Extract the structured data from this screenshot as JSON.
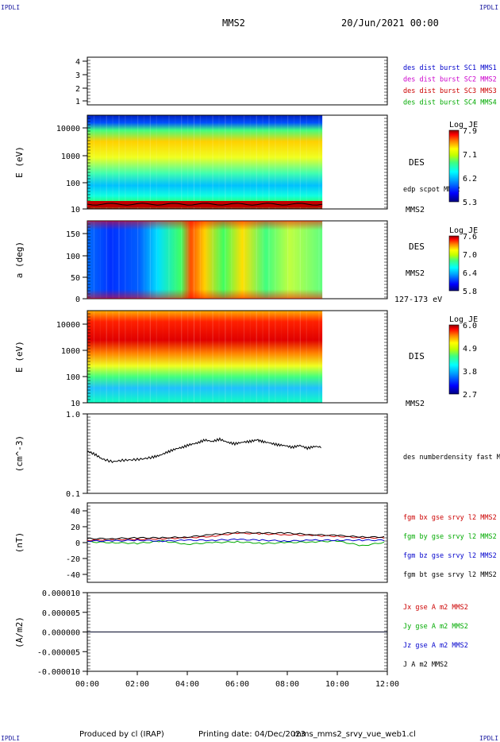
{
  "corners": {
    "top_left": "IPDLI",
    "top_right": "IPDLI",
    "bottom_left": "IPDLI",
    "bottom_right": "IPDLI"
  },
  "header": {
    "spacecraft": "MMS2",
    "date": "20/Jun/2021 00:00"
  },
  "footer": {
    "produced_by": "Produced by cl (IRAP)",
    "printing_date": "Printing date: 04/Dec/2023",
    "filename": "mms_mms2_srvy_vue_web1.cl"
  },
  "colors": {
    "spectrogram_scale": [
      "#00007f",
      "#0000ff",
      "#00a0ff",
      "#00ffff",
      "#40ff80",
      "#c0ff00",
      "#ffff00",
      "#ff8000",
      "#ff0000",
      "#8b0000"
    ],
    "bx": "#cc0000",
    "by": "#00aa00",
    "bz": "#0000cc",
    "bt": "#000000"
  },
  "chart_data": [
    {
      "type": "scatter",
      "title": "",
      "ylim": [
        0.5,
        4.5
      ],
      "yticks": [
        "4",
        "3",
        "2",
        "1"
      ],
      "legend_position": "right",
      "series": [
        {
          "name": "des dist burst SC1 MMS1",
          "color": "#0000cc",
          "values": []
        },
        {
          "name": "des dist burst SC2 MMS2",
          "color": "#cc00cc",
          "values": []
        },
        {
          "name": "des dist burst SC3 MMS3",
          "color": "#cc0000",
          "values": []
        },
        {
          "name": "des dist burst SC4 MMS4",
          "color": "#00aa00",
          "values": []
        }
      ]
    },
    {
      "type": "heatmap",
      "ylabel": "E (eV)",
      "yscale": "log",
      "yticks": [
        "10000",
        "1000",
        "100",
        "10"
      ],
      "instrument": "DES",
      "overlay_label": "edp scpot MMS2",
      "spacecraft": "MMS2",
      "colorbar": {
        "title": "Log JE",
        "ticks": [
          "7.9",
          "7.1",
          "6.2",
          "5.3"
        ],
        "range": [
          5.3,
          7.9
        ]
      },
      "data_end_hour": 9.4
    },
    {
      "type": "heatmap",
      "ylabel": "a (deg)",
      "yticks": [
        "150",
        "100",
        "50",
        "0"
      ],
      "ylim": [
        0,
        180
      ],
      "instrument": "DES",
      "spacecraft": "MMS2",
      "energy_range": "127-173 eV",
      "colorbar": {
        "title": "Log JE",
        "ticks": [
          "7.6",
          "7.0",
          "6.4",
          "5.8"
        ],
        "range": [
          5.8,
          7.6
        ]
      },
      "data_end_hour": 9.4
    },
    {
      "type": "heatmap",
      "ylabel": "E (eV)",
      "yscale": "log",
      "yticks": [
        "10000",
        "1000",
        "100",
        "10"
      ],
      "instrument": "DIS",
      "spacecraft": "MMS2",
      "colorbar": {
        "title": "Log JE",
        "ticks": [
          "6.0",
          "4.9",
          "3.8",
          "2.7"
        ],
        "range": [
          2.7,
          6.0
        ]
      },
      "data_end_hour": 9.4
    },
    {
      "type": "line",
      "ylabel": "(cm^-3)",
      "yscale": "log",
      "ylim": [
        0.1,
        1.0
      ],
      "yticks": [
        "1.0",
        "0.1"
      ],
      "series": [
        {
          "name": "des numberdensity fast M",
          "color": "#000000",
          "x": [
            0,
            0.3,
            0.6,
            1.0,
            1.4,
            1.8,
            2.2,
            2.6,
            2.9,
            3.2,
            3.5,
            3.8,
            4.1,
            4.4,
            4.7,
            5.0,
            5.3,
            5.6,
            5.9,
            6.2,
            6.5,
            6.8,
            7.0,
            7.3,
            7.6,
            7.9,
            8.2,
            8.5,
            8.8,
            9.1,
            9.4
          ],
          "y": [
            0.34,
            0.31,
            0.27,
            0.25,
            0.26,
            0.265,
            0.27,
            0.285,
            0.3,
            0.33,
            0.36,
            0.38,
            0.41,
            0.43,
            0.47,
            0.45,
            0.48,
            0.44,
            0.42,
            0.44,
            0.45,
            0.47,
            0.45,
            0.43,
            0.41,
            0.4,
            0.38,
            0.4,
            0.37,
            0.39,
            0.38
          ]
        }
      ]
    },
    {
      "type": "line",
      "ylabel": "(nT)",
      "ylim": [
        -50,
        50
      ],
      "yticks": [
        "40",
        "20",
        "0",
        "-20",
        "-40"
      ],
      "series": [
        {
          "name": "fgm bx gse srvy l2 MMS2",
          "color": "#cc0000",
          "x": [
            0,
            1,
            2,
            3,
            4,
            5,
            6,
            7,
            8,
            9,
            10,
            11,
            12
          ],
          "y": [
            3,
            4,
            4,
            5,
            6,
            8,
            12,
            11,
            10,
            9,
            8,
            6,
            6
          ]
        },
        {
          "name": "fgm by gse srvy l2 MMS2",
          "color": "#00aa00",
          "x": [
            0,
            1,
            2,
            3,
            4,
            5,
            6,
            7,
            8,
            9,
            10,
            11,
            12
          ],
          "y": [
            1,
            0,
            -1,
            2,
            -2,
            0,
            1,
            -1,
            0,
            1,
            2,
            -4,
            1
          ]
        },
        {
          "name": "fgm bz gse srvy l2 MMS2",
          "color": "#0000cc",
          "x": [
            0,
            1,
            2,
            3,
            4,
            5,
            6,
            7,
            8,
            9,
            10,
            11,
            12
          ],
          "y": [
            2,
            2,
            3,
            2,
            3,
            3,
            4,
            3,
            2,
            3,
            3,
            3,
            3
          ]
        },
        {
          "name": "fgm bt gse srvy l2 MMS2",
          "color": "#000000",
          "x": [
            0,
            1,
            2,
            3,
            4,
            5,
            6,
            7,
            8,
            9,
            10,
            11,
            12
          ],
          "y": [
            5,
            5,
            6,
            6,
            7,
            10,
            13,
            12,
            12,
            10,
            9,
            7,
            7
          ]
        }
      ]
    },
    {
      "type": "line",
      "ylabel": "(A/m2)",
      "ylim": [
        -1e-05,
        1e-05
      ],
      "yticks": [
        "0.000010",
        "0.000005",
        "0.000000",
        "-0.000005",
        "-0.000010"
      ],
      "xticks": [
        "00:00",
        "02:00",
        "04:00",
        "06:00",
        "08:00",
        "10:00",
        "12:00"
      ],
      "series": [
        {
          "name": "Jx gse A m2 MMS2",
          "color": "#cc0000",
          "x": [
            0,
            12
          ],
          "y": [
            0,
            0
          ]
        },
        {
          "name": "Jy gse A m2 MMS2",
          "color": "#00aa00",
          "x": [
            0,
            12
          ],
          "y": [
            0,
            0
          ]
        },
        {
          "name": "Jz gse A m2 MMS2",
          "color": "#0000cc",
          "x": [
            0,
            12
          ],
          "y": [
            0,
            0
          ]
        },
        {
          "name": "J A m2 MMS2",
          "color": "#000000",
          "x": [
            0,
            12
          ],
          "y": [
            0,
            0
          ]
        }
      ]
    }
  ]
}
